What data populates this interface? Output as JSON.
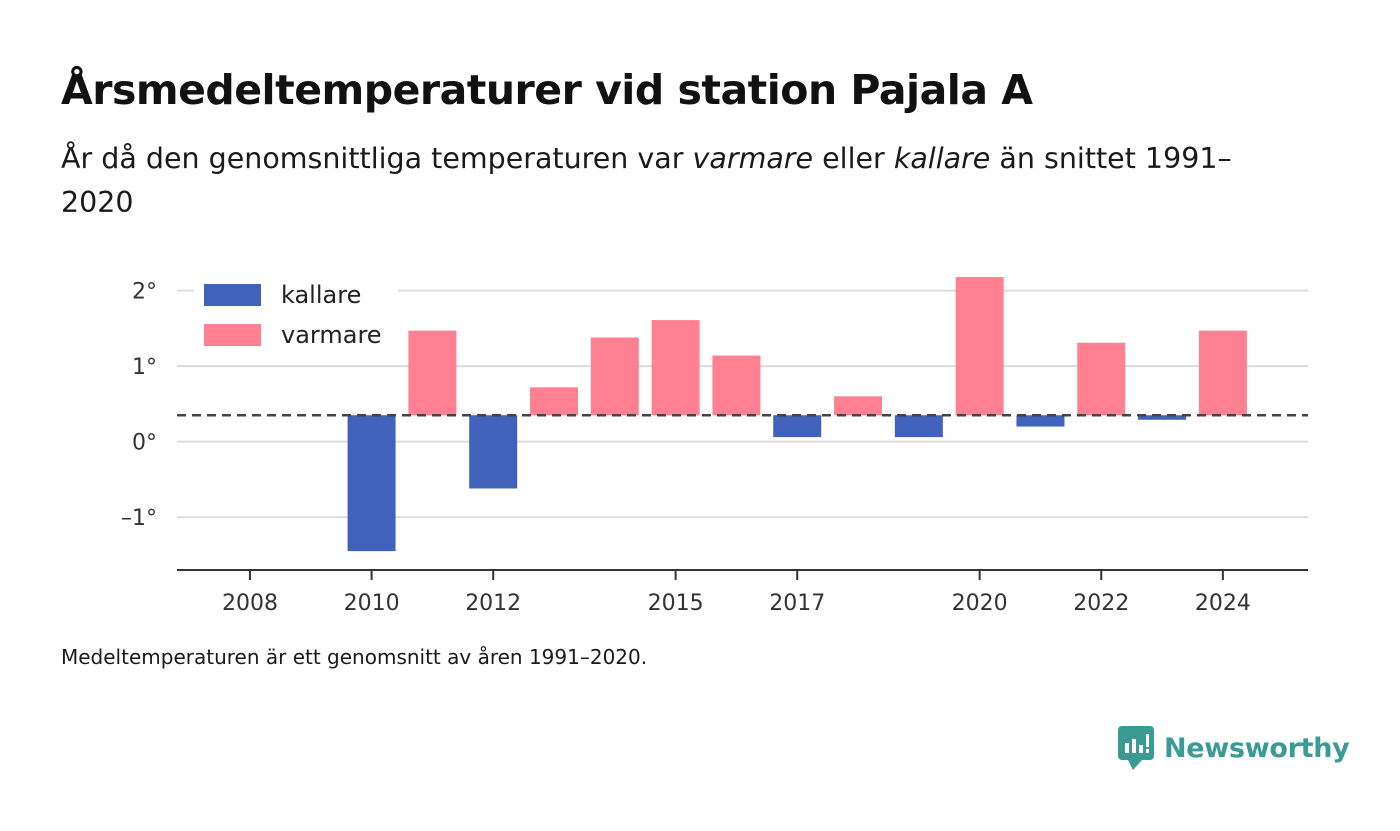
{
  "header": {
    "title": "Årsmedeltemperaturer vid station Pajala A",
    "subtitle_parts": [
      "År då den genomsnittliga temperaturen var ",
      "varmare",
      " eller ",
      "kallare",
      " än snittet 1991–2020"
    ]
  },
  "footnote": "Medeltemperaturen är ett genomsnitt av åren 1991–2020.",
  "brand": {
    "name": "Newsworthy",
    "icon": "newsworthy-logo-icon",
    "color": "#3a9a94"
  },
  "chart_data": {
    "type": "bar",
    "baseline": 0.35,
    "colors": {
      "kallare": "#4062bb",
      "varmare": "#ff8090"
    },
    "legend": {
      "placement": "top-left",
      "items": [
        {
          "key": "kallare",
          "label": "kallare"
        },
        {
          "key": "varmare",
          "label": "varmare"
        }
      ]
    },
    "ylim": [
      -1.7,
      2.3
    ],
    "y_ticks": [
      {
        "value": 2,
        "label": "2°"
      },
      {
        "value": 1,
        "label": "1°"
      },
      {
        "value": 0,
        "label": "0°"
      },
      {
        "value": -1,
        "label": "–1°"
      }
    ],
    "xlim": [
      2006.8,
      2025.4
    ],
    "x_ticks": [
      {
        "value": 2008,
        "label": "2008"
      },
      {
        "value": 2010,
        "label": "2010"
      },
      {
        "value": 2012,
        "label": "2012"
      },
      {
        "value": 2015,
        "label": "2015"
      },
      {
        "value": 2017,
        "label": "2017"
      },
      {
        "value": 2020,
        "label": "2020"
      },
      {
        "value": 2022,
        "label": "2022"
      },
      {
        "value": 2024,
        "label": "2024"
      }
    ],
    "grid": true,
    "series": [
      {
        "x": 2010,
        "value": -1.45
      },
      {
        "x": 2011,
        "value": 1.47
      },
      {
        "x": 2012,
        "value": -0.62
      },
      {
        "x": 2013,
        "value": 0.72
      },
      {
        "x": 2014,
        "value": 1.38
      },
      {
        "x": 2015,
        "value": 1.61
      },
      {
        "x": 2016,
        "value": 1.14
      },
      {
        "x": 2017,
        "value": 0.06
      },
      {
        "x": 2018,
        "value": 0.6
      },
      {
        "x": 2019,
        "value": 0.06
      },
      {
        "x": 2020,
        "value": 2.18
      },
      {
        "x": 2021,
        "value": 0.2
      },
      {
        "x": 2022,
        "value": 1.31
      },
      {
        "x": 2023,
        "value": 0.29
      },
      {
        "x": 2024,
        "value": 1.47
      }
    ]
  }
}
